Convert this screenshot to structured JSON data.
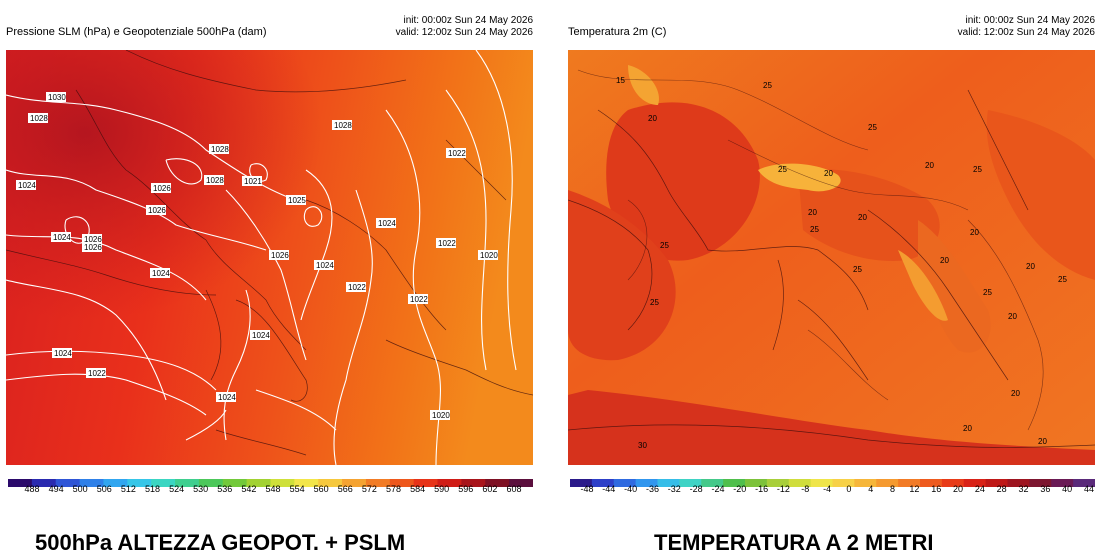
{
  "left": {
    "title": "Pressione SLM (hPa) e Geopotenziale 500hPa (dam)",
    "init": "init: 00:00z Sun 24 May 2026",
    "valid": "valid: 12:00z Sun 24 May 2026",
    "colorbar_ticks": [
      "488",
      "494",
      "500",
      "506",
      "512",
      "518",
      "524",
      "530",
      "536",
      "542",
      "548",
      "554",
      "560",
      "566",
      "572",
      "578",
      "584",
      "590",
      "596",
      "602",
      "608"
    ],
    "colorbar_colors": [
      "#2b0a6b",
      "#2a2ab0",
      "#2f55d6",
      "#2f80e8",
      "#31a6f0",
      "#36c6e8",
      "#3bd6c2",
      "#3fcf8f",
      "#4cc85a",
      "#72c93a",
      "#a2d232",
      "#cfe03a",
      "#f3e64a",
      "#f6c83d",
      "#f5a331",
      "#f27c25",
      "#ee571c",
      "#e73318",
      "#d01c16",
      "#a8141a",
      "#7e1023",
      "#5b0f3d"
    ],
    "isobar_labels": [
      "1030",
      "1028",
      "1024",
      "1026",
      "1028",
      "1028",
      "1026",
      "1024",
      "1028",
      "1021",
      "1025",
      "1026",
      "1024",
      "1024",
      "1026",
      "1024",
      "1022",
      "1022",
      "1020",
      "1022",
      "1024",
      "1022",
      "1026",
      "1024",
      "1022",
      "1024",
      "1020"
    ],
    "caption": "500hPa ALTEZZA GEOPOT. + PSLM"
  },
  "right": {
    "title": "Temperatura 2m (C)",
    "init": "init: 00:00z Sun 24 May 2026",
    "valid": "valid: 12:00z Sun 24 May 2026",
    "colorbar_ticks": [
      "-48",
      "-44",
      "-40",
      "-36",
      "-32",
      "-28",
      "-24",
      "-20",
      "-16",
      "-12",
      "-8",
      "-4",
      "0",
      "4",
      "8",
      "12",
      "16",
      "20",
      "24",
      "28",
      "32",
      "36",
      "40",
      "44"
    ],
    "colorbar_colors": [
      "#2a1a8a",
      "#2d3fc8",
      "#2f6ae0",
      "#3196ee",
      "#36bde8",
      "#3fd3c5",
      "#44c98a",
      "#4fbf4c",
      "#7cc23a",
      "#a8cf3a",
      "#d0dd3c",
      "#efe54a",
      "#f7d148",
      "#f6b63a",
      "#f59a30",
      "#f27b26",
      "#ee5a1e",
      "#e83b18",
      "#d92217",
      "#bf1817",
      "#9e1520",
      "#7d1630",
      "#6a1a55",
      "#5a2a7a"
    ],
    "temp_labels": [
      "15",
      "20",
      "25",
      "20",
      "25",
      "20",
      "25",
      "20",
      "20",
      "25",
      "25",
      "20",
      "25",
      "20",
      "25",
      "20",
      "25",
      "20",
      "25",
      "20",
      "30",
      "20",
      "20",
      "25"
    ],
    "caption": "TEMPERATURA A 2 METRI"
  }
}
